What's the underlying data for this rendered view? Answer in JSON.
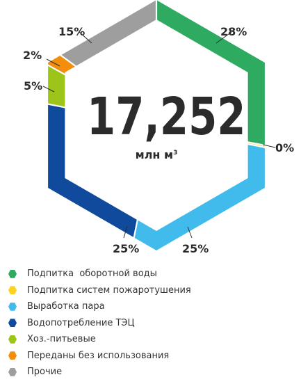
{
  "chart_data": {
    "type": "pie",
    "shape": "hexagon-donut",
    "center": {
      "value": "17,252",
      "unit_main": "млн м",
      "unit_sup": "3"
    },
    "slices": [
      {
        "label": "Подпитка  оборотной воды",
        "value_label": "28%",
        "value": 28,
        "color": "#2eab61"
      },
      {
        "label": "Подпитка систем пожаротушения",
        "value_label": "0%",
        "value": 0.3,
        "color": "#ffd21f"
      },
      {
        "label": "Выработка пара",
        "value_label": "25%",
        "value": 25,
        "color": "#41bbec"
      },
      {
        "label": "Водопотребление ТЭЦ",
        "value_label": "25%",
        "value": 25,
        "color": "#0f4a9c"
      },
      {
        "label": "Хоз.-питьевые",
        "value_label": "5%",
        "value": 5,
        "color": "#9dc419"
      },
      {
        "label": "Переданы без использования",
        "value_label": "2%",
        "value": 2,
        "color": "#f28e0c"
      },
      {
        "label": "Прочие",
        "value_label": "15%",
        "value": 15,
        "color": "#9e9e9e"
      }
    ],
    "legend_position": "bottom-left"
  }
}
